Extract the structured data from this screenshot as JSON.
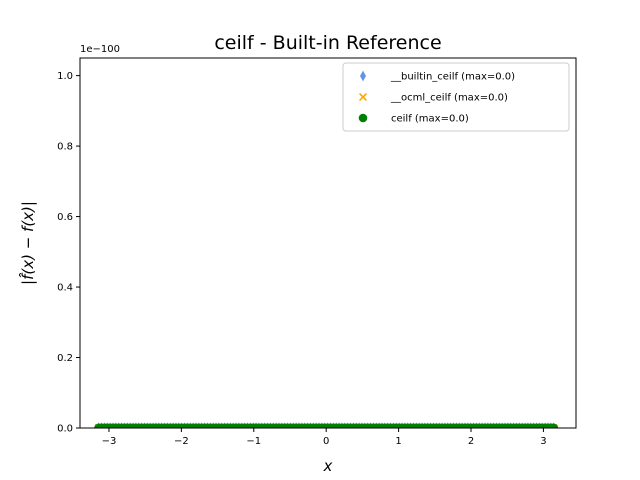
{
  "chart_data": {
    "type": "scatter",
    "title": "ceilf - Built-in Reference",
    "xlabel": "x",
    "ylabel": "|f̂(x) − f(x)|",
    "y_offset_label": "1e−100",
    "xlim": [
      -3.4,
      3.45
    ],
    "ylim": [
      0,
      1.05
    ],
    "x_ticks": [
      -3,
      -2,
      -1,
      0,
      1,
      2,
      3
    ],
    "x_tick_labels": [
      "−3",
      "−2",
      "−1",
      "0",
      "1",
      "2",
      "3"
    ],
    "y_ticks": [
      0.0,
      0.2,
      0.4,
      0.6,
      0.8,
      1.0
    ],
    "y_tick_labels": [
      "0.0",
      "0.2",
      "0.4",
      "0.6",
      "0.8",
      "1.0"
    ],
    "grid": false,
    "legend_position": "top-right",
    "x_range": [
      -3.14159,
      3.14159
    ],
    "sample_count": 160,
    "series": [
      {
        "name": "__builtin_ceilf (max=0.0)",
        "marker": "diamond",
        "color": "#6495ed",
        "y_value": 0
      },
      {
        "name": "__ocml_ceilf (max=0.0)",
        "marker": "x",
        "color": "#ffa500",
        "y_value": 0
      },
      {
        "name": "ceilf (max=0.0)",
        "marker": "circle",
        "color": "#008000",
        "y_value": 0
      }
    ]
  }
}
